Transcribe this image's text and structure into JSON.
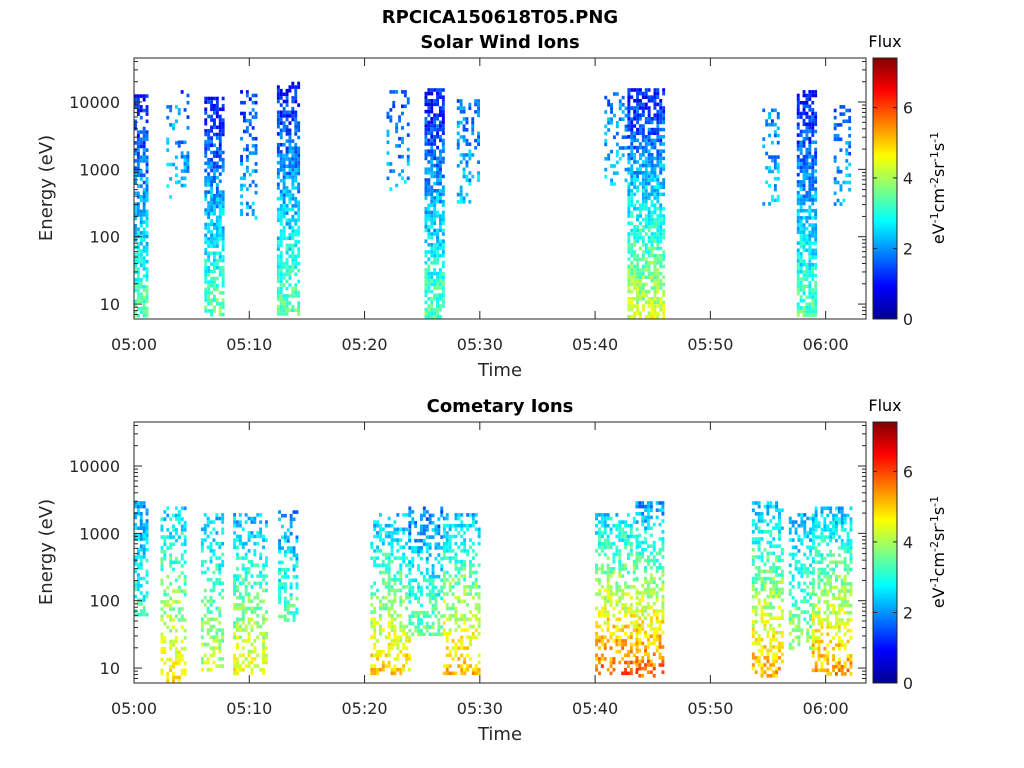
{
  "figure": {
    "title": "RPCICA150618T05.PNG"
  },
  "colormap": [
    "#00008f",
    "#0000ff",
    "#0080ff",
    "#00ffff",
    "#80ff80",
    "#ffff00",
    "#ff8000",
    "#ff0000",
    "#800000"
  ],
  "chart_data": [
    {
      "type": "heatmap",
      "title": "Solar Wind Ions",
      "xlabel": "Time",
      "ylabel": "Energy (eV)",
      "x_ticks": [
        "05:00",
        "05:10",
        "05:20",
        "05:30",
        "05:40",
        "05:50",
        "06:00"
      ],
      "y_ticks": [
        "10",
        "100",
        "1000",
        "10000"
      ],
      "y_scale": "log",
      "ylim": [
        6,
        45000
      ],
      "xlim_minutes": [
        0,
        63.5
      ],
      "colorbar": {
        "label": "eV-1cm-2sr-1s-1",
        "title": "Flux",
        "ticks": [
          "0",
          "2",
          "4",
          "6"
        ],
        "range": [
          0,
          7.4
        ]
      },
      "bursts": [
        {
          "t": [
            0.0,
            1.1
          ],
          "e_max": 13000,
          "e_min": 6,
          "density": 0.7,
          "flux_high": 1.0,
          "flux_low": 3.5
        },
        {
          "t": [
            2.8,
            3.6
          ],
          "e_max": 9000,
          "e_min": 400,
          "density": 0.25,
          "flux_high": 2.0,
          "flux_low": 2.5
        },
        {
          "t": [
            3.8,
            4.8
          ],
          "e_max": 15000,
          "e_min": 600,
          "density": 0.25,
          "flux_high": 1.6,
          "flux_low": 2.3
        },
        {
          "t": [
            6.1,
            7.7
          ],
          "e_max": 12000,
          "e_min": 6,
          "density": 0.7,
          "flux_high": 1.0,
          "flux_low": 3.5
        },
        {
          "t": [
            9.2,
            10.7
          ],
          "e_max": 15000,
          "e_min": 200,
          "density": 0.3,
          "flux_high": 1.4,
          "flux_low": 2.2
        },
        {
          "t": [
            12.4,
            14.2
          ],
          "e_max": 20000,
          "e_min": 6,
          "density": 0.7,
          "flux_high": 1.0,
          "flux_low": 3.5
        },
        {
          "t": [
            21.9,
            23.8
          ],
          "e_max": 15000,
          "e_min": 500,
          "density": 0.22,
          "flux_high": 1.5,
          "flux_low": 2.2
        },
        {
          "t": [
            25.2,
            26.8
          ],
          "e_max": 16000,
          "e_min": 6,
          "density": 0.75,
          "flux_high": 1.0,
          "flux_low": 3.4
        },
        {
          "t": [
            28.0,
            30.0
          ],
          "e_max": 11000,
          "e_min": 300,
          "density": 0.3,
          "flux_high": 1.8,
          "flux_low": 2.4
        },
        {
          "t": [
            40.8,
            43.2
          ],
          "e_max": 14000,
          "e_min": 600,
          "density": 0.25,
          "flux_high": 1.8,
          "flux_low": 2.4
        },
        {
          "t": [
            42.8,
            46.0
          ],
          "e_max": 16000,
          "e_min": 6,
          "density": 0.7,
          "flux_high": 1.0,
          "flux_low": 4.3
        },
        {
          "t": [
            54.5,
            55.8
          ],
          "e_max": 8000,
          "e_min": 300,
          "density": 0.25,
          "flux_high": 1.8,
          "flux_low": 2.4
        },
        {
          "t": [
            57.5,
            59.2
          ],
          "e_max": 15000,
          "e_min": 6,
          "density": 0.7,
          "flux_high": 1.0,
          "flux_low": 3.4
        },
        {
          "t": [
            60.7,
            62.2
          ],
          "e_max": 9000,
          "e_min": 300,
          "density": 0.3,
          "flux_high": 1.6,
          "flux_low": 2.4
        }
      ]
    },
    {
      "type": "heatmap",
      "title": "Cometary Ions",
      "xlabel": "Time",
      "ylabel": "Energy (eV)",
      "x_ticks": [
        "05:00",
        "05:10",
        "05:20",
        "05:30",
        "05:40",
        "05:50",
        "06:00"
      ],
      "y_ticks": [
        "10",
        "100",
        "1000",
        "10000"
      ],
      "y_scale": "log",
      "ylim": [
        6,
        45000
      ],
      "xlim_minutes": [
        0,
        63.5
      ],
      "colorbar": {
        "label": "eV-1cm-2sr-1s-1",
        "title": "Flux",
        "ticks": [
          "0",
          "2",
          "4",
          "6"
        ],
        "range": [
          0,
          7.4
        ]
      },
      "bursts": [
        {
          "t": [
            0.0,
            1.2
          ],
          "e_max": 3000,
          "e_min": 60,
          "density": 0.55,
          "flux_high": 2.0,
          "flux_low": 3.3
        },
        {
          "t": [
            2.3,
            4.5
          ],
          "e_max": 2500,
          "e_min": 6,
          "density": 0.45,
          "flux_high": 2.5,
          "flux_low": 4.8
        },
        {
          "t": [
            5.8,
            7.8
          ],
          "e_max": 2000,
          "e_min": 10,
          "density": 0.45,
          "flux_high": 2.4,
          "flux_low": 4.2
        },
        {
          "t": [
            8.6,
            11.5
          ],
          "e_max": 2000,
          "e_min": 8,
          "density": 0.45,
          "flux_high": 2.3,
          "flux_low": 4.6
        },
        {
          "t": [
            12.5,
            14.2
          ],
          "e_max": 2200,
          "e_min": 50,
          "density": 0.45,
          "flux_high": 2.0,
          "flux_low": 3.4
        },
        {
          "t": [
            20.5,
            23.8
          ],
          "e_max": 2000,
          "e_min": 8,
          "density": 0.45,
          "flux_high": 2.3,
          "flux_low": 5.0
        },
        {
          "t": [
            23.8,
            26.8
          ],
          "e_max": 2500,
          "e_min": 30,
          "density": 0.45,
          "flux_high": 1.8,
          "flux_low": 3.6
        },
        {
          "t": [
            26.8,
            30.0
          ],
          "e_max": 2000,
          "e_min": 8,
          "density": 0.45,
          "flux_high": 2.4,
          "flux_low": 5.2
        },
        {
          "t": [
            40.0,
            43.6
          ],
          "e_max": 2000,
          "e_min": 8,
          "density": 0.5,
          "flux_high": 2.5,
          "flux_low": 5.8
        },
        {
          "t": [
            43.5,
            46.0
          ],
          "e_max": 3000,
          "e_min": 8,
          "density": 0.5,
          "flux_high": 2.0,
          "flux_low": 5.8
        },
        {
          "t": [
            53.6,
            56.3
          ],
          "e_max": 3000,
          "e_min": 8,
          "density": 0.5,
          "flux_high": 2.4,
          "flux_low": 5.2
        },
        {
          "t": [
            56.8,
            59.0
          ],
          "e_max": 2000,
          "e_min": 20,
          "density": 0.45,
          "flux_high": 2.2,
          "flux_low": 4.0
        },
        {
          "t": [
            58.8,
            62.3
          ],
          "e_max": 2500,
          "e_min": 8,
          "density": 0.5,
          "flux_high": 2.3,
          "flux_low": 5.4
        }
      ]
    }
  ]
}
